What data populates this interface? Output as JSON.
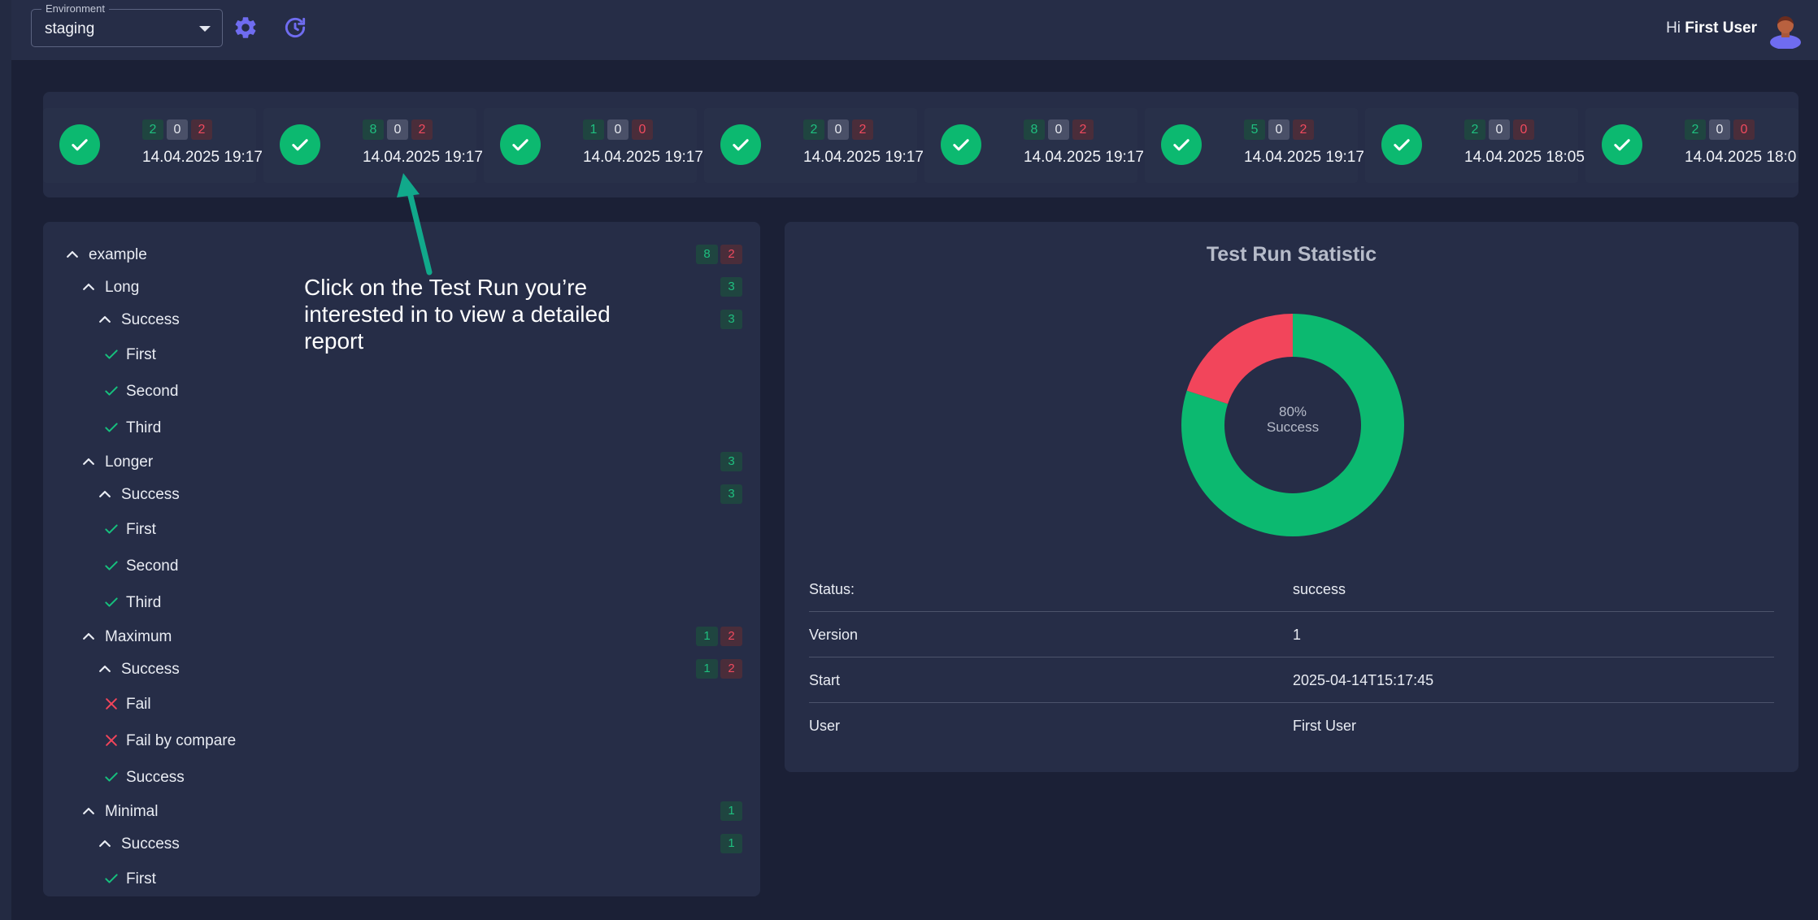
{
  "header": {
    "environment_label": "Environment",
    "environment_value": "staging",
    "greeting_prefix": "Hi",
    "user_name": "First User"
  },
  "colors": {
    "success": "#0cb970",
    "fail": "#f2455b",
    "accent": "#6f6cf0",
    "panel": "#262d47",
    "background": "#1b2036"
  },
  "icons": {
    "settings": "gear-icon",
    "refresh": "refresh-icon",
    "run_status": "check-icon",
    "expand": "chevron-up-icon",
    "pass": "check-icon",
    "fail": "close-icon"
  },
  "runs": [
    {
      "passed": "2",
      "skipped": "0",
      "failed": "2",
      "date": "14.04.2025 19:17"
    },
    {
      "passed": "8",
      "skipped": "0",
      "failed": "2",
      "date": "14.04.2025 19:17"
    },
    {
      "passed": "1",
      "skipped": "0",
      "failed": "0",
      "date": "14.04.2025 19:17"
    },
    {
      "passed": "2",
      "skipped": "0",
      "failed": "2",
      "date": "14.04.2025 19:17"
    },
    {
      "passed": "8",
      "skipped": "0",
      "failed": "2",
      "date": "14.04.2025 19:17"
    },
    {
      "passed": "5",
      "skipped": "0",
      "failed": "2",
      "date": "14.04.2025 19:17"
    },
    {
      "passed": "2",
      "skipped": "0",
      "failed": "0",
      "date": "14.04.2025 18:05"
    },
    {
      "passed": "2",
      "skipped": "0",
      "failed": "0",
      "date": "14.04.2025 18:0"
    }
  ],
  "tree": [
    {
      "label": "example",
      "type": "group",
      "level": 0,
      "passed": "8",
      "failed": "2"
    },
    {
      "label": "Long",
      "type": "group",
      "level": 1,
      "passed": "3"
    },
    {
      "label": "Success",
      "type": "group",
      "level": 2,
      "passed": "3"
    },
    {
      "label": "First",
      "type": "pass",
      "level": 3
    },
    {
      "label": "Second",
      "type": "pass",
      "level": 3
    },
    {
      "label": "Third",
      "type": "pass",
      "level": 3
    },
    {
      "label": "Longer",
      "type": "group",
      "level": 1,
      "passed": "3"
    },
    {
      "label": "Success",
      "type": "group",
      "level": 2,
      "passed": "3"
    },
    {
      "label": "First",
      "type": "pass",
      "level": 3
    },
    {
      "label": "Second",
      "type": "pass",
      "level": 3
    },
    {
      "label": "Third",
      "type": "pass",
      "level": 3
    },
    {
      "label": "Maximum",
      "type": "group",
      "level": 1,
      "passed": "1",
      "failed": "2"
    },
    {
      "label": "Success",
      "type": "group",
      "level": 2,
      "passed": "1",
      "failed": "2"
    },
    {
      "label": "Fail",
      "type": "fail",
      "level": 3
    },
    {
      "label": "Fail by compare",
      "type": "fail",
      "level": 3
    },
    {
      "label": "Success",
      "type": "pass",
      "level": 3
    },
    {
      "label": "Minimal",
      "type": "group",
      "level": 1,
      "passed": "1"
    },
    {
      "label": "Success",
      "type": "group",
      "level": 2,
      "passed": "1"
    },
    {
      "label": "First",
      "type": "pass",
      "level": 3
    }
  ],
  "stats": {
    "title": "Test Run Statistic",
    "success_fraction": 0.8,
    "center_percent": "80%",
    "center_label": "Success",
    "rows": [
      {
        "key": "Status:",
        "value": "success"
      },
      {
        "key": "Version",
        "value": "1"
      },
      {
        "key": "Start",
        "value": "2025-04-14T15:17:45"
      },
      {
        "key": "User",
        "value": "First User"
      }
    ]
  },
  "annotation": {
    "text": "Click on the Test Run you’re interested in to view a detailed report"
  }
}
